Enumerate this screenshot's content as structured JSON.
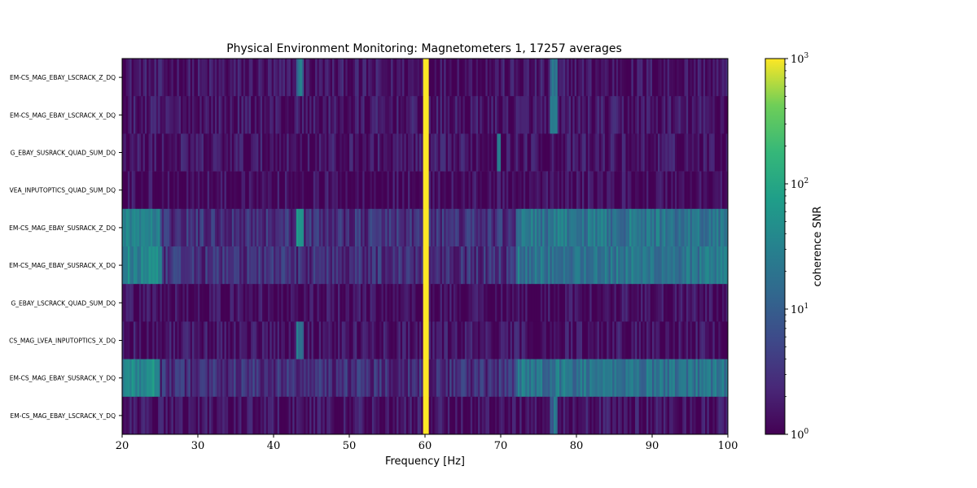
{
  "chart_data": {
    "type": "heatmap",
    "title": "Physical Environment Monitoring: Magnetometers 1, 17257 averages",
    "xlabel": "Frequency [Hz]",
    "xlim": [
      20,
      100
    ],
    "xticks": [
      20,
      30,
      40,
      50,
      60,
      70,
      80,
      90,
      100
    ],
    "rows": [
      {
        "label": "EM-CS_MAG_EBAY_LSCRACK_Z_DQ",
        "baseline": 1.4,
        "features": [
          [
            43,
            44,
            20
          ],
          [
            59.7,
            60.5,
            1000
          ],
          [
            76.5,
            77.5,
            15
          ]
        ]
      },
      {
        "label": "EM-CS_MAG_EBAY_LSCRACK_X_DQ",
        "baseline": 1.4,
        "features": [
          [
            59.7,
            60.5,
            1000
          ],
          [
            76.5,
            77.5,
            15
          ]
        ]
      },
      {
        "label": "G_EBAY_SUSRACK_QUAD_SUM_DQ",
        "baseline": 1.4,
        "features": [
          [
            59.7,
            60.5,
            1000
          ],
          [
            69.5,
            70,
            40
          ]
        ]
      },
      {
        "label": "VEA_INPUTOPTICS_QUAD_SUM_DQ",
        "baseline": 1.2,
        "features": [
          [
            59.7,
            60.5,
            1000
          ]
        ]
      },
      {
        "label": "EM-CS_MAG_EBAY_SUSRACK_Z_DQ",
        "baseline": 3.0,
        "features": [
          [
            20,
            25,
            30
          ],
          [
            43,
            44,
            40
          ],
          [
            59.7,
            60.5,
            1000
          ],
          [
            72,
            100,
            20
          ]
        ]
      },
      {
        "label": "EM-CS_MAG_EBAY_SUSRACK_X_DQ",
        "baseline": 3.0,
        "features": [
          [
            20,
            25.3,
            30
          ],
          [
            59.7,
            60.5,
            1000
          ],
          [
            72,
            100,
            20
          ]
        ]
      },
      {
        "label": "G_EBAY_LSCRACK_QUAD_SUM_DQ",
        "baseline": 1.2,
        "features": [
          [
            59.7,
            60.5,
            1000
          ]
        ]
      },
      {
        "label": "CS_MAG_LVEA_INPUTOPTICS_X_DQ",
        "baseline": 1.4,
        "features": [
          [
            43,
            44,
            20
          ],
          [
            59.7,
            60.5,
            1000
          ]
        ]
      },
      {
        "label": "EM-CS_MAG_EBAY_SUSRACK_Y_DQ",
        "baseline": 3.0,
        "features": [
          [
            20,
            25,
            40
          ],
          [
            59.7,
            60.5,
            1000
          ],
          [
            72,
            100,
            20
          ]
        ]
      },
      {
        "label": "EM-CS_MAG_EBAY_LSCRACK_Y_DQ",
        "baseline": 1.4,
        "features": [
          [
            59.7,
            60.5,
            1000
          ],
          [
            76.5,
            77.5,
            15
          ]
        ]
      }
    ],
    "colorbar": {
      "label": "coherence SNR",
      "scale": "log",
      "range": [
        1,
        1000
      ],
      "ticks": [
        {
          "base": "10",
          "exp": "0"
        },
        {
          "base": "10",
          "exp": "1"
        },
        {
          "base": "10",
          "exp": "2"
        },
        {
          "base": "10",
          "exp": "3"
        }
      ],
      "colormap": "viridis"
    },
    "grid": false
  }
}
